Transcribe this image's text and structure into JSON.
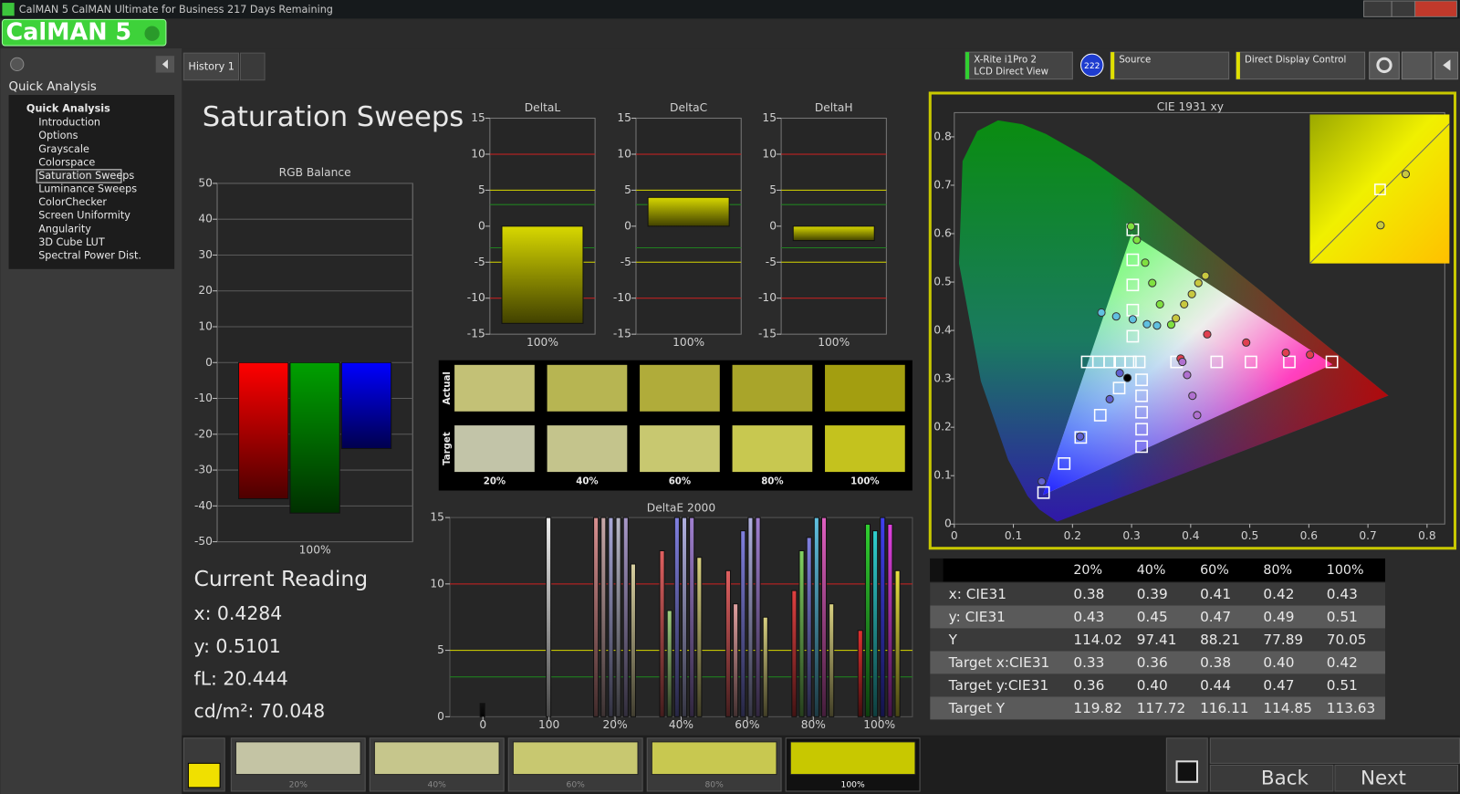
{
  "window_title": "CalMAN 5 CalMAN Ultimate for Business 217 Days Remaining",
  "logo": "CalMAN 5",
  "tab": "History 1",
  "nav": {
    "heading": "Quick Analysis",
    "group": "Quick Analysis",
    "items": [
      "Introduction",
      "Options",
      "Grayscale",
      "Colorspace",
      "Saturation Sweeps",
      "Luminance Sweeps",
      "ColorChecker",
      "Screen Uniformity",
      "Angularity",
      "3D Cube LUT",
      "Spectral Power Dist."
    ],
    "selected": 4
  },
  "devices": {
    "meter": "X-Rite i1Pro 2",
    "meter_mode": "LCD Direct View",
    "badge": "222",
    "source": "Source",
    "display": "Direct Display Control"
  },
  "page_title": "Saturation Sweeps",
  "chart_data": [
    {
      "type": "bar",
      "title": "RGB Balance",
      "categories": [
        "100%"
      ],
      "series": [
        {
          "color": "#ff0000",
          "values": [
            -38
          ]
        },
        {
          "color": "#00a000",
          "values": [
            -42
          ]
        },
        {
          "color": "#0000ff",
          "values": [
            -24
          ]
        }
      ],
      "ylim": [
        -50,
        50
      ],
      "yticks": [
        -50,
        -40,
        -30,
        -20,
        -10,
        0,
        10,
        20,
        30,
        40,
        50
      ],
      "grid": true
    },
    {
      "type": "bar",
      "title": "DeltaL",
      "categories": [
        "100%"
      ],
      "values": [
        -13.5
      ],
      "color": "#d8d800",
      "ylim": [
        -15,
        15
      ],
      "yticks": [
        -15,
        -10,
        -5,
        0,
        5,
        10,
        15
      ],
      "grid": false,
      "reference_lines": [
        {
          "value": 10,
          "color": "#d02020"
        },
        {
          "value": 5,
          "color": "#d8d800"
        },
        {
          "value": 3,
          "color": "#208020"
        },
        {
          "value": -3,
          "color": "#208020"
        },
        {
          "value": -5,
          "color": "#d8d800"
        },
        {
          "value": -10,
          "color": "#d02020"
        }
      ]
    },
    {
      "type": "bar",
      "title": "DeltaC",
      "categories": [
        "100%"
      ],
      "values": [
        4
      ],
      "color": "#d8d800",
      "ylim": [
        -15,
        15
      ],
      "yticks": [
        -15,
        -10,
        -5,
        0,
        5,
        10,
        15
      ],
      "grid": false,
      "reference_lines": [
        {
          "value": 10,
          "color": "#d02020"
        },
        {
          "value": 5,
          "color": "#d8d800"
        },
        {
          "value": 3,
          "color": "#208020"
        },
        {
          "value": -3,
          "color": "#208020"
        },
        {
          "value": -5,
          "color": "#d8d800"
        },
        {
          "value": -10,
          "color": "#d02020"
        }
      ]
    },
    {
      "type": "bar",
      "title": "DeltaH",
      "categories": [
        "100%"
      ],
      "values": [
        -2
      ],
      "color": "#d8d800",
      "ylim": [
        -15,
        15
      ],
      "yticks": [
        -15,
        -10,
        -5,
        0,
        5,
        10,
        15
      ],
      "grid": false,
      "reference_lines": [
        {
          "value": 10,
          "color": "#d02020"
        },
        {
          "value": 5,
          "color": "#d8d800"
        },
        {
          "value": 3,
          "color": "#208020"
        },
        {
          "value": -3,
          "color": "#208020"
        },
        {
          "value": -5,
          "color": "#d8d800"
        },
        {
          "value": -10,
          "color": "#d02020"
        }
      ]
    },
    {
      "type": "grouped_bar",
      "title": "DeltaE 2000",
      "categories": [
        "0",
        "100",
        "20%",
        "40%",
        "60%",
        "80%",
        "100%"
      ],
      "values": [
        [
          1
        ],
        [
          15
        ],
        [
          15,
          15,
          15,
          15,
          15,
          11.5
        ],
        [
          12.5,
          8,
          15,
          15,
          15,
          12
        ],
        [
          11,
          8.5,
          14,
          15,
          15,
          7.5
        ],
        [
          9.5,
          12.5,
          13.5,
          15,
          15,
          8.5
        ],
        [
          6.5,
          14.5,
          14,
          15,
          14.5,
          11
        ]
      ],
      "colors": [
        [
          "#111111"
        ],
        [
          "#f0f0f0"
        ],
        [
          "#d89090",
          "#c8a8a8",
          "#a8a8d8",
          "#b8b8c8",
          "#a898c8",
          "#d8d0a0"
        ],
        [
          "#e06060",
          "#a0d080",
          "#8080e0",
          "#b0b0e0",
          "#a080d0",
          "#d8d080"
        ],
        [
          "#e06060",
          "#e0a0a0",
          "#8080e0",
          "#b0b0e0",
          "#a080d0",
          "#d8d080"
        ],
        [
          "#e04040",
          "#80d060",
          "#8080e0",
          "#60c0e0",
          "#e060c0",
          "#d8d080"
        ],
        [
          "#e03030",
          "#30d030",
          "#30d0d0",
          "#4040f0",
          "#e040e0",
          "#e8e040"
        ]
      ],
      "ylim": [
        0,
        15
      ],
      "yticks": [
        0,
        5,
        10,
        15
      ],
      "reference_lines": [
        {
          "value": 10,
          "color": "#d02020"
        },
        {
          "value": 5,
          "color": "#d8d800"
        },
        {
          "value": 3,
          "color": "#208020"
        }
      ]
    },
    {
      "type": "scatter",
      "title": "CIE 1931 xy",
      "xlim": [
        0,
        0.83
      ],
      "ylim": [
        0,
        0.85
      ],
      "xticks": [
        0,
        0.1,
        0.2,
        0.3,
        0.4,
        0.5,
        0.6,
        0.7,
        0.8
      ],
      "yticks": [
        0,
        0.1,
        0.2,
        0.3,
        0.4,
        0.5,
        0.6,
        0.7,
        0.8
      ],
      "series": [
        {
          "marker": "square",
          "color": "#ffffff",
          "x": [
            0.225,
            0.244,
            0.263,
            0.28,
            0.298,
            0.313,
            0.376,
            0.444,
            0.502,
            0.567,
            0.639,
            0.302,
            0.302,
            0.302,
            0.302,
            0.302,
            0.279,
            0.247,
            0.214,
            0.186,
            0.151,
            0.317,
            0.317,
            0.317,
            0.317,
            0.317
          ],
          "y": [
            0.335,
            0.335,
            0.335,
            0.335,
            0.335,
            0.335,
            0.335,
            0.335,
            0.335,
            0.335,
            0.335,
            0.388,
            0.442,
            0.494,
            0.546,
            0.608,
            0.281,
            0.225,
            0.179,
            0.125,
            0.065,
            0.298,
            0.265,
            0.231,
            0.196,
            0.16
          ]
        },
        {
          "marker": "circle",
          "color": "#80e040",
          "x": [
            0.299,
            0.309,
            0.323,
            0.335,
            0.348,
            0.367
          ],
          "y": [
            0.615,
            0.587,
            0.54,
            0.498,
            0.454,
            0.412
          ]
        },
        {
          "marker": "circle",
          "color": "#c8c840",
          "x": [
            0.425,
            0.413,
            0.402,
            0.389,
            0.375
          ],
          "y": [
            0.513,
            0.498,
            0.475,
            0.454,
            0.425
          ]
        },
        {
          "marker": "circle",
          "color": "#e04050",
          "x": [
            0.602,
            0.561,
            0.494,
            0.428,
            0.383
          ],
          "y": [
            0.35,
            0.354,
            0.375,
            0.392,
            0.342
          ]
        },
        {
          "marker": "circle",
          "color": "#60c0e0",
          "x": [
            0.249,
            0.274,
            0.302,
            0.326,
            0.343
          ],
          "y": [
            0.437,
            0.429,
            0.423,
            0.413,
            0.41
          ]
        },
        {
          "marker": "circle",
          "color": "#6060d0",
          "x": [
            0.148,
            0.213,
            0.263,
            0.28
          ],
          "y": [
            0.088,
            0.181,
            0.258,
            0.312
          ]
        },
        {
          "marker": "circle",
          "color": "#b070d0",
          "x": [
            0.411,
            0.403,
            0.394,
            0.386
          ],
          "y": [
            0.225,
            0.265,
            0.308,
            0.335
          ]
        },
        {
          "marker": "circle",
          "color": "#000000",
          "x": [
            0.293
          ],
          "y": [
            0.302
          ]
        }
      ]
    }
  ],
  "swatches": {
    "row_labels": [
      "Actual",
      "Target"
    ],
    "columns": [
      "20%",
      "40%",
      "60%",
      "80%",
      "100%"
    ],
    "actual_colors": [
      "#c3c176",
      "#b7b552",
      "#b0ac3a",
      "#a9a52a",
      "#a39e10"
    ],
    "target_colors": [
      "#c2c4a8",
      "#c4c48c",
      "#c8c870",
      "#c8c850",
      "#c4c21e"
    ]
  },
  "current_reading": {
    "title": "Current Reading",
    "lines": [
      "x: 0.4284",
      "y: 0.5101",
      "fL: 20.444",
      "cd/m²: 70.048"
    ]
  },
  "table": {
    "header": [
      "20%",
      "40%",
      "60%",
      "80%",
      "100%"
    ],
    "rows": [
      [
        "x: CIE31",
        "0.38",
        "0.39",
        "0.41",
        "0.42",
        "0.43"
      ],
      [
        "y: CIE31",
        "0.43",
        "0.45",
        "0.47",
        "0.49",
        "0.51"
      ],
      [
        "Y",
        "114.02",
        "97.41",
        "88.21",
        "77.89",
        "70.05"
      ],
      [
        "Target x:CIE31",
        "0.33",
        "0.36",
        "0.38",
        "0.40",
        "0.42"
      ],
      [
        "Target y:CIE31",
        "0.36",
        "0.40",
        "0.44",
        "0.47",
        "0.51"
      ],
      [
        "Target Y",
        "119.82",
        "117.72",
        "116.11",
        "114.85",
        "113.63"
      ]
    ]
  },
  "footer": {
    "swatch_color": "#f0e000",
    "patches": [
      {
        "label": "20%",
        "color": "#c4c4a4"
      },
      {
        "label": "40%",
        "color": "#c6c68c"
      },
      {
        "label": "60%",
        "color": "#c8c870"
      },
      {
        "label": "80%",
        "color": "#c8c850"
      },
      {
        "label": "100%",
        "color": "#c8c800"
      }
    ],
    "selected": 4,
    "buttons": [
      "Back",
      "Next"
    ]
  }
}
